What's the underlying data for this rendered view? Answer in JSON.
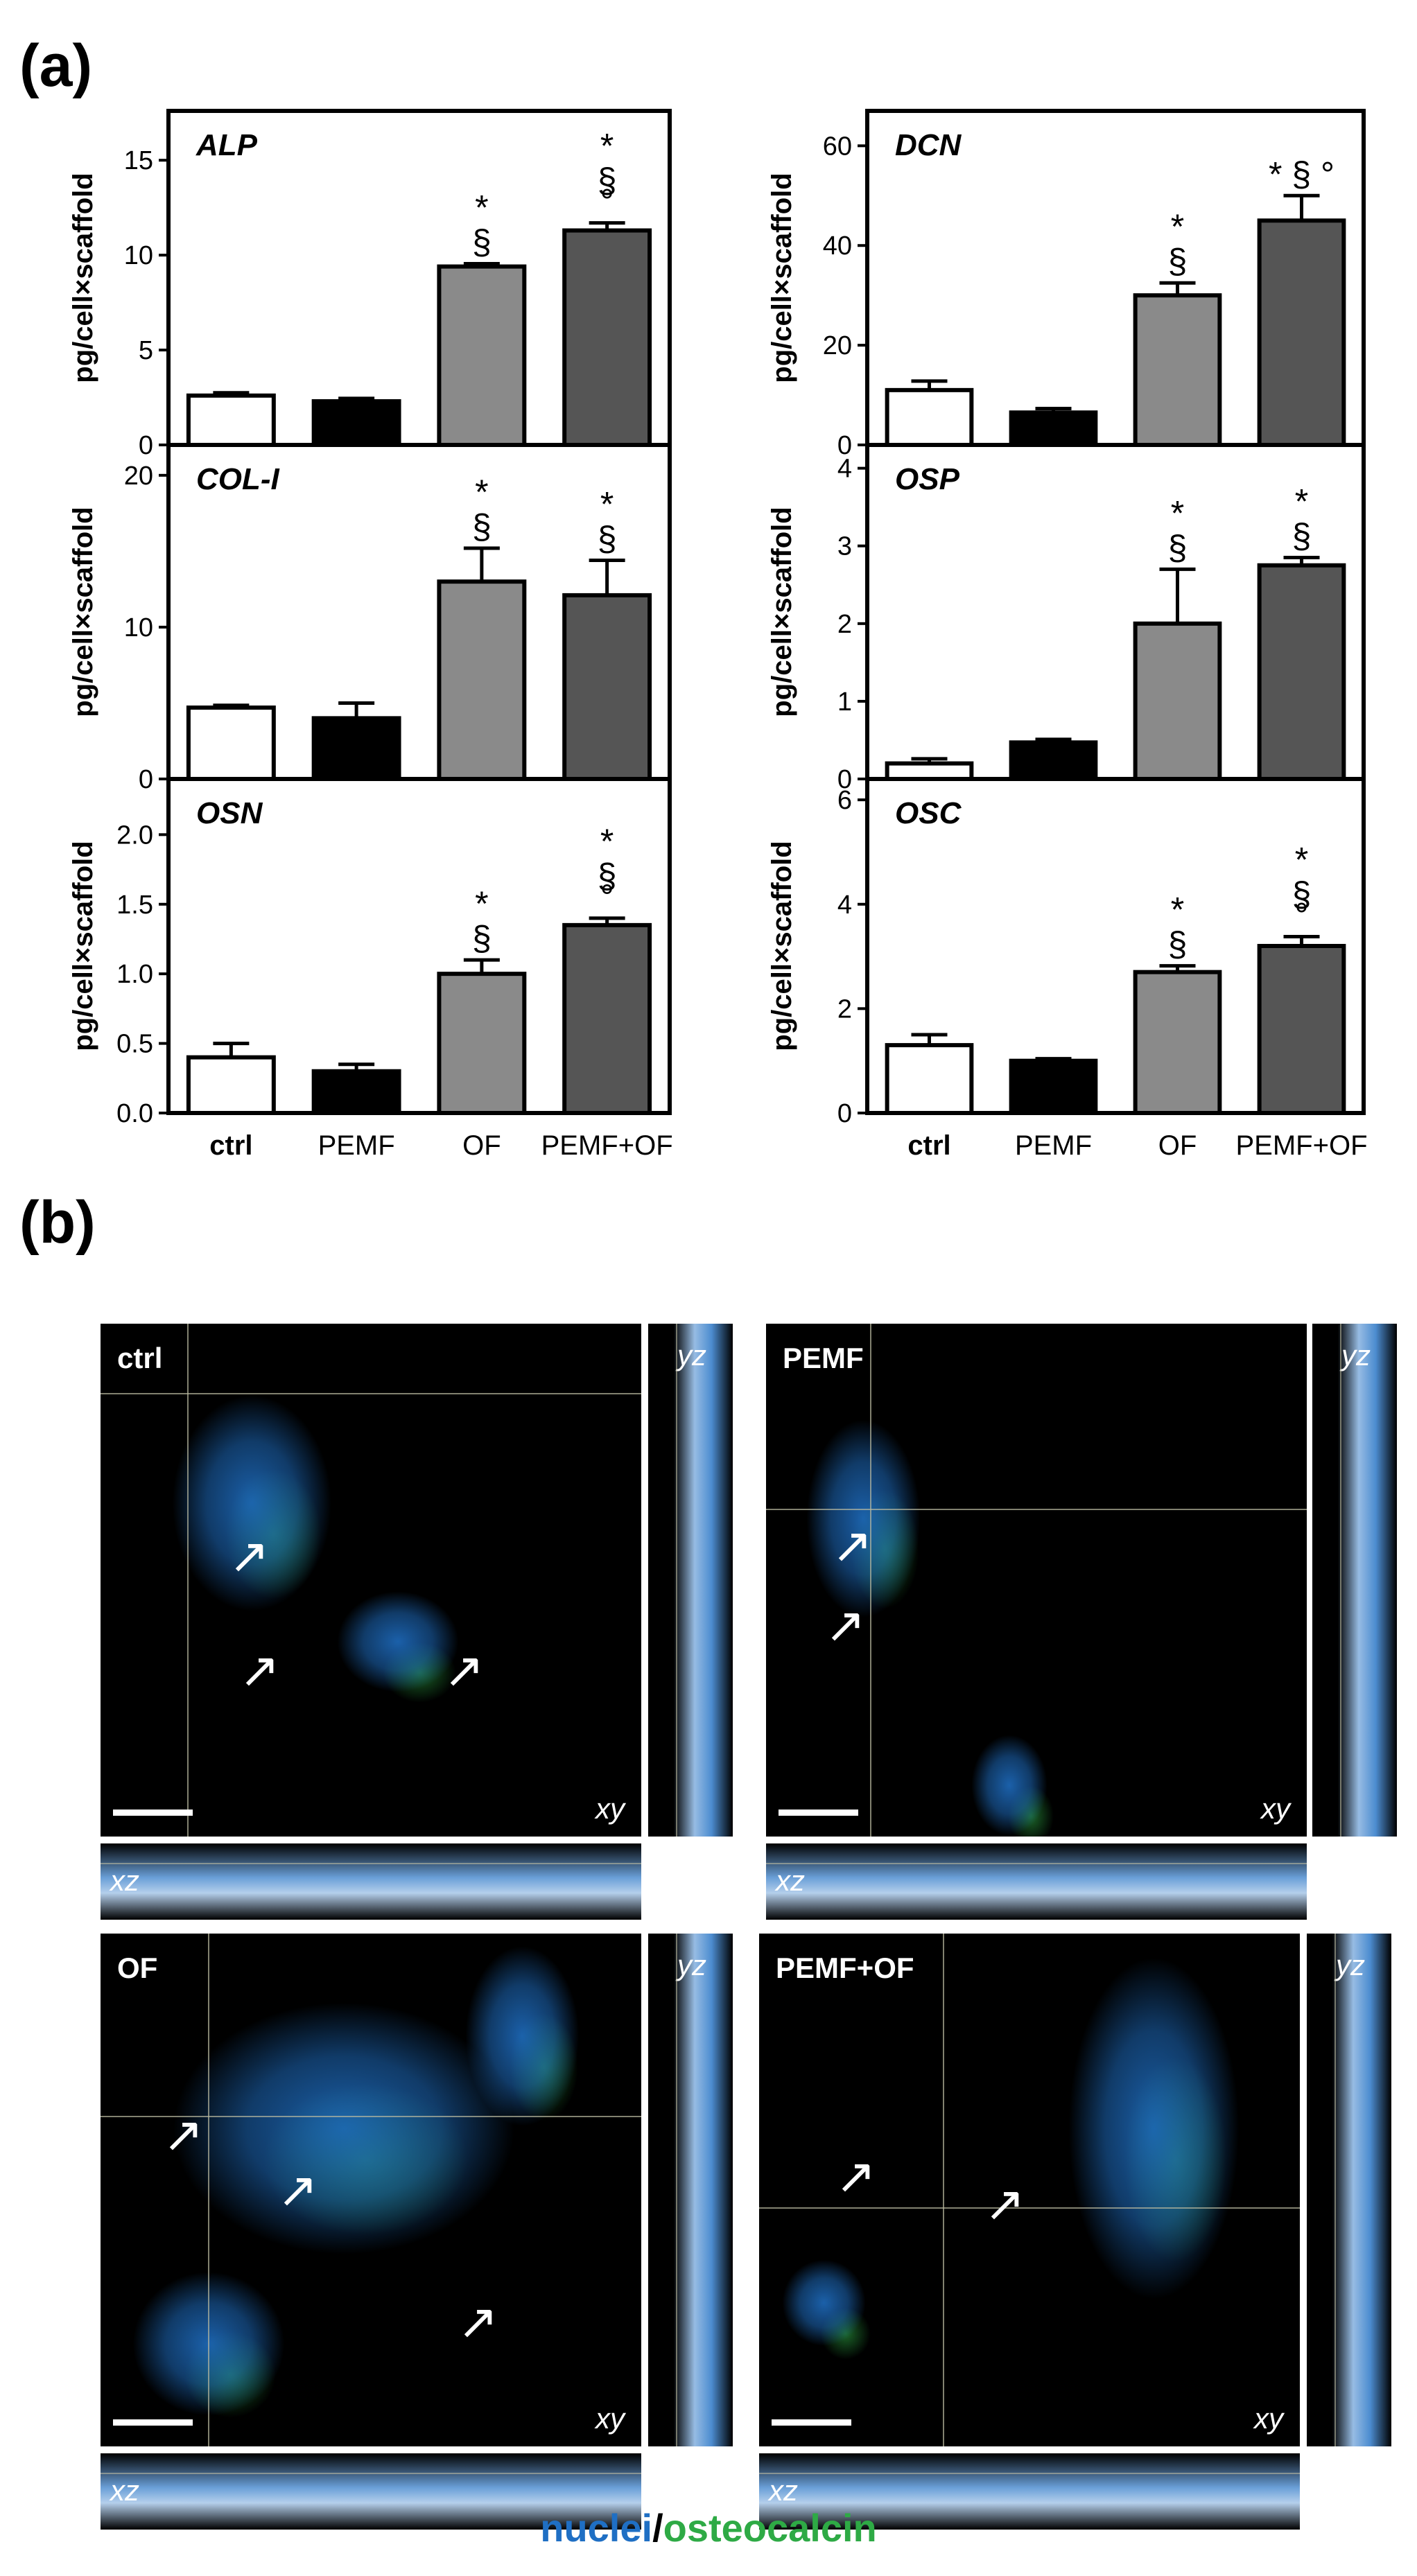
{
  "figure": {
    "panel_a_label": "(a)",
    "panel_b_label": "(b)",
    "caption_part1": "nuclei",
    "caption_sep": "/",
    "caption_part2": "osteocalcin",
    "colors": {
      "nuclei": "#1f6fc4",
      "osteocalcin": "#2eaa45",
      "bar_fills": [
        "#ffffff",
        "#000000",
        "#8a8a8a",
        "#555555"
      ]
    }
  },
  "chart_data": [
    {
      "type": "bar",
      "title": "ALP",
      "ylabel": "pg/cell×scaffold",
      "categories": [
        "ctrl",
        "PEMF",
        "OF",
        "PEMF+OF"
      ],
      "values": [
        2.6,
        2.3,
        9.4,
        11.3
      ],
      "errors": [
        0.15,
        0.15,
        0.15,
        0.4
      ],
      "ylim": [
        0,
        17.6
      ],
      "ticks": [
        "0",
        "5",
        "10",
        "15"
      ],
      "tick_values": [
        0,
        5,
        10,
        15
      ],
      "annotations": [
        [],
        [],
        [
          "§",
          "*"
        ],
        [
          "°",
          "§",
          "*"
        ]
      ]
    },
    {
      "type": "bar",
      "title": "DCN",
      "ylabel": "pg/cell×scaffold",
      "categories": [
        "ctrl",
        "PEMF",
        "OF",
        "PEMF+OF"
      ],
      "values": [
        11,
        6.5,
        30,
        45
      ],
      "errors": [
        1.8,
        0.8,
        2.5,
        5
      ],
      "ylim": [
        0,
        67
      ],
      "ticks": [
        "0",
        "20",
        "40",
        "60"
      ],
      "tick_values": [
        0,
        20,
        40,
        60
      ],
      "annotations": [
        [],
        [],
        [
          "§",
          "*"
        ],
        [
          "* § °"
        ]
      ]
    },
    {
      "type": "bar",
      "title": "COL-I",
      "ylabel": "pg/cell×scaffold",
      "categories": [
        "ctrl",
        "PEMF",
        "OF",
        "PEMF+OF"
      ],
      "values": [
        4.7,
        4.0,
        13.0,
        12.1
      ],
      "errors": [
        0.15,
        1.0,
        2.2,
        2.3
      ],
      "ylim": [
        0,
        22
      ],
      "ticks": [
        "0",
        "10",
        "20"
      ],
      "tick_values": [
        0,
        10,
        20
      ],
      "annotations": [
        [],
        [],
        [
          "§",
          "*"
        ],
        [
          "§",
          "*"
        ]
      ]
    },
    {
      "type": "bar",
      "title": "OSP",
      "ylabel": "pg/cell×scaffold",
      "categories": [
        "ctrl",
        "PEMF",
        "OF",
        "PEMF+OF"
      ],
      "values": [
        0.2,
        0.47,
        2.0,
        2.75
      ],
      "errors": [
        0.06,
        0.04,
        0.7,
        0.1
      ],
      "ylim": [
        0,
        4.3
      ],
      "ticks": [
        "0",
        "1",
        "2",
        "3",
        "4"
      ],
      "tick_values": [
        0,
        1,
        2,
        3,
        4
      ],
      "annotations": [
        [],
        [],
        [
          "§",
          "*"
        ],
        [
          "§",
          "*"
        ]
      ]
    },
    {
      "type": "bar",
      "title": "OSN",
      "ylabel": "pg/cell×scaffold",
      "categories": [
        "ctrl",
        "PEMF",
        "OF",
        "PEMF+OF"
      ],
      "values": [
        0.4,
        0.3,
        1.0,
        1.35
      ],
      "errors": [
        0.1,
        0.05,
        0.1,
        0.05
      ],
      "ylim": [
        0,
        2.4
      ],
      "ticks": [
        "0.0",
        "0.5",
        "1.0",
        "1.5",
        "2.0"
      ],
      "tick_values": [
        0,
        0.5,
        1,
        1.5,
        2
      ],
      "annotations": [
        [],
        [],
        [
          "§",
          "*"
        ],
        [
          "°",
          "§",
          "*"
        ]
      ]
    },
    {
      "type": "bar",
      "title": "OSC",
      "ylabel": "pg/cell×scaffold",
      "categories": [
        "ctrl",
        "PEMF",
        "OF",
        "PEMF+OF"
      ],
      "values": [
        1.3,
        1.0,
        2.7,
        3.2
      ],
      "errors": [
        0.2,
        0.04,
        0.12,
        0.18
      ],
      "ylim": [
        0,
        6.4
      ],
      "ticks": [
        "0",
        "2",
        "4",
        "6"
      ],
      "tick_values": [
        0,
        2,
        4,
        6
      ],
      "annotations": [
        [],
        [],
        [
          "§",
          "*"
        ],
        [
          "°",
          "§",
          "*"
        ]
      ]
    }
  ],
  "micrographs": [
    {
      "condition": "ctrl",
      "xy_label": "xy",
      "xz_label": "xz",
      "yz_label": "yz"
    },
    {
      "condition": "PEMF",
      "xy_label": "xy",
      "xz_label": "xz",
      "yz_label": "yz"
    },
    {
      "condition": "OF",
      "xy_label": "xy",
      "xz_label": "xz",
      "yz_label": "yz"
    },
    {
      "condition": "PEMF+OF",
      "xy_label": "xy",
      "xz_label": "xz",
      "yz_label": "yz"
    }
  ]
}
